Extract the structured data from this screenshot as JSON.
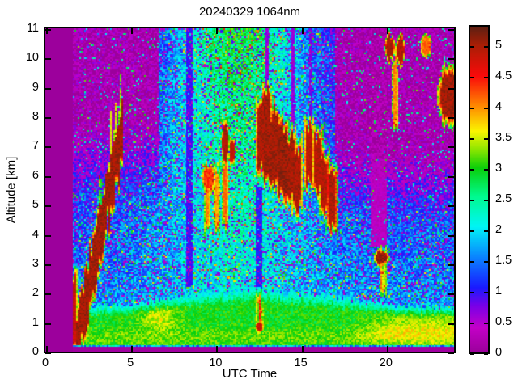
{
  "figure": {
    "title": "20240329 1064nm",
    "xlabel": "UTC Time",
    "ylabel": "Altitude [km]",
    "background_color": "#FFFFFF",
    "frame_color": "#000000"
  },
  "axes": {
    "x": {
      "min": 0,
      "max": 24,
      "ticks": [
        0,
        5,
        10,
        15,
        20
      ],
      "tick_labels": [
        "0",
        "5",
        "10",
        "15",
        "20"
      ]
    },
    "y": {
      "min": 0,
      "max": 11,
      "ticks": [
        0,
        1,
        2,
        3,
        4,
        5,
        6,
        7,
        8,
        9,
        10,
        11
      ],
      "tick_labels": [
        "0",
        "1",
        "2",
        "3",
        "4",
        "5",
        "6",
        "7",
        "8",
        "9",
        "10",
        "11"
      ]
    }
  },
  "colorbar": {
    "min": 0,
    "max": 5.3,
    "ticks": [
      0,
      0.5,
      1,
      1.5,
      2,
      2.5,
      3,
      3.5,
      4,
      4.5,
      5
    ],
    "tick_labels": [
      "0",
      "0.5",
      "1",
      "1.5",
      "2",
      "2.5",
      "3",
      "3.5",
      "4",
      "4.5",
      "5"
    ]
  },
  "colormap": [
    [
      0.0,
      "#9C009C"
    ],
    [
      0.4,
      "#C400C8"
    ],
    [
      0.75,
      "#7A00E8"
    ],
    [
      1.05,
      "#1A1AFF"
    ],
    [
      1.55,
      "#0A85FF"
    ],
    [
      2.05,
      "#00F5F5"
    ],
    [
      2.55,
      "#00FA8C"
    ],
    [
      3.0,
      "#0ACF0A"
    ],
    [
      3.3,
      "#8CE600"
    ],
    [
      3.6,
      "#FAF500"
    ],
    [
      4.0,
      "#FF8C00"
    ],
    [
      4.5,
      "#FA0A0A"
    ],
    [
      5.0,
      "#AA1E05"
    ],
    [
      5.3,
      "#5F1F12"
    ]
  ],
  "chart_data": {
    "type": "heatmap",
    "title": "20240329 1064nm",
    "xlabel": "UTC Time",
    "ylabel": "Altitude [km]",
    "x_range_hours": [
      0,
      24
    ],
    "y_range_km": [
      0,
      11
    ],
    "value_range": [
      0,
      5.3
    ],
    "grid": false,
    "legend": "colorbar right, 0 to 5.3 in 0.5 steps",
    "description": "Lidar 1064 nm attenuated-backscatter time-height quicklook for 2024-03-29. No data before ~01:40 UTC (flat magenta). Speckled blue/purple clear air, green boundary layer below ~1.5-2 km, cyan/green elevated plume 07-17 UTC reaching 11 km, saturated dark-red cloud layers, and magenta attenuation gaps above thick clouds.",
    "background": {
      "data_start_hour": 1.65,
      "blind_zone_top_km": 0.15,
      "surface_line_km": 0.22,
      "bl_value": 2.95,
      "bl_top_profile": [
        [
          1.7,
          1.5
        ],
        [
          5,
          1.6
        ],
        [
          8,
          1.9
        ],
        [
          12,
          2.15
        ],
        [
          14,
          2.05
        ],
        [
          17,
          1.85
        ],
        [
          20,
          1.6
        ],
        [
          24,
          1.5
        ]
      ],
      "free_air_base": 1.55,
      "free_air_lapse": 0.11,
      "plume_center_hour": 11.3,
      "plume_sigma_hours": 4.3,
      "plume_gain": 0.5,
      "plume_alt_gain": 0.2,
      "right_fade_start_hour": 17,
      "right_fade_alt_km": 4.6,
      "left_fade_end_hour": 6.6,
      "left_fade_alt_km": 5.2,
      "yellow_patch": {
        "t": 6.7,
        "z": 1.15,
        "amp": 0.55
      },
      "evening_low_yellow": {
        "from_hour": 17.5,
        "z": 0.75,
        "amp": 0.5
      }
    },
    "attenuation_bands": [
      {
        "t0": 8.3,
        "t1": 8.6,
        "z0": 2.2,
        "z1": 11,
        "value": 0.8
      },
      {
        "t0": 12.35,
        "t1": 12.75,
        "z0": 2.2,
        "z1": 5.6,
        "value": 0.9
      },
      {
        "t0": 12.9,
        "t1": 13.12,
        "z0": 8.8,
        "z1": 11,
        "value": 0.5
      },
      {
        "t0": 14.38,
        "t1": 14.58,
        "z0": 7.7,
        "z1": 11,
        "value": 0.5
      },
      {
        "t0": 15.5,
        "t1": 15.64,
        "z0": 7.6,
        "z1": 11,
        "value": 0.6
      },
      {
        "t0": 19.1,
        "t1": 20.05,
        "z0": 3.55,
        "z1": 11,
        "value": 0.2
      }
    ],
    "features": [
      {
        "kind": "vstreak",
        "name": "cloud-onset-column",
        "t": 1.68,
        "w": 0.1,
        "z0": 0.3,
        "z1": 2.3,
        "value": 5.0
      },
      {
        "kind": "streak",
        "name": "ascending-cloud-band",
        "t0": 1.9,
        "z0": 0.7,
        "t1": 4.35,
        "z1": 7.35,
        "half_width_h": 0.3,
        "depth_km": 1.25,
        "value": 5.2,
        "spikes_above": true
      },
      {
        "kind": "blob",
        "name": "midday-cloud",
        "tc": 9.55,
        "zc": 5.9,
        "rt": 0.38,
        "rz": 0.55,
        "value": 4.5
      },
      {
        "kind": "vstreak",
        "name": "virga",
        "t": 9.5,
        "w": 0.07,
        "z0": 4.3,
        "z1": 6.1,
        "value": 4.2
      },
      {
        "kind": "vstreak",
        "name": "virga",
        "t": 10.05,
        "w": 0.06,
        "z0": 4.4,
        "z1": 6.0,
        "value": 4.1
      },
      {
        "kind": "vstreak",
        "name": "virga",
        "t": 10.55,
        "w": 0.07,
        "z0": 4.4,
        "z1": 6.3,
        "value": 4.3
      },
      {
        "kind": "blob",
        "name": "cloud",
        "tc": 10.55,
        "zc": 7.1,
        "rt": 0.24,
        "rz": 0.7,
        "value": 5.15
      },
      {
        "kind": "blob",
        "name": "cloud",
        "tc": 10.95,
        "zc": 6.8,
        "rt": 0.2,
        "rz": 0.55,
        "value": 5.0
      },
      {
        "kind": "vstreak",
        "name": "cloud",
        "t": 12.6,
        "w": 0.18,
        "z0": 6.4,
        "z1": 8.3,
        "value": 5.15
      },
      {
        "kind": "vstreak",
        "name": "cloud",
        "t": 13.0,
        "w": 0.2,
        "z0": 6.0,
        "z1": 8.7,
        "value": 5.2
      },
      {
        "kind": "vstreak",
        "name": "cloud",
        "t": 13.45,
        "w": 0.22,
        "z0": 5.8,
        "z1": 8.1,
        "value": 5.2
      },
      {
        "kind": "vstreak",
        "name": "cloud",
        "t": 13.9,
        "w": 0.26,
        "z0": 5.5,
        "z1": 7.6,
        "value": 5.25
      },
      {
        "kind": "vstreak",
        "name": "cloud",
        "t": 14.35,
        "w": 0.26,
        "z0": 5.25,
        "z1": 7.3,
        "value": 5.2
      },
      {
        "kind": "vstreak",
        "name": "cloud",
        "t": 14.75,
        "w": 0.22,
        "z0": 5.0,
        "z1": 6.9,
        "value": 5.15
      },
      {
        "kind": "vstreak",
        "name": "cloud",
        "t": 15.45,
        "w": 0.18,
        "z0": 5.9,
        "z1": 7.5,
        "value": 5.05
      },
      {
        "kind": "vstreak",
        "name": "cloud",
        "t": 15.95,
        "w": 0.2,
        "z0": 5.5,
        "z1": 7.2,
        "value": 5.1
      },
      {
        "kind": "vstreak",
        "name": "cloud",
        "t": 16.35,
        "w": 0.2,
        "z0": 4.9,
        "z1": 6.7,
        "value": 5.1
      },
      {
        "kind": "vstreak",
        "name": "descending-cloud",
        "t": 16.8,
        "w": 0.22,
        "z0": 4.3,
        "z1": 6.1,
        "value": 5.15
      },
      {
        "kind": "blob",
        "name": "low-cloud",
        "tc": 19.7,
        "zc": 3.2,
        "rt": 0.48,
        "rz": 0.3,
        "value": 5.25
      },
      {
        "kind": "vstreak",
        "name": "virga",
        "t": 19.8,
        "w": 0.08,
        "z0": 2.35,
        "z1": 3.0,
        "value": 3.6
      },
      {
        "kind": "blob",
        "name": "high-cloud",
        "tc": 20.2,
        "zc": 10.35,
        "rt": 0.33,
        "rz": 0.5,
        "value": 5.15
      },
      {
        "kind": "blob",
        "name": "high-cloud",
        "tc": 20.8,
        "zc": 10.25,
        "rt": 0.3,
        "rz": 0.55,
        "value": 5.1
      },
      {
        "kind": "vstreak",
        "name": "fall-streak",
        "t": 20.5,
        "w": 0.07,
        "z0": 8.0,
        "z1": 9.8,
        "value": 4.2
      },
      {
        "kind": "blob",
        "name": "small-high-cloud",
        "tc": 22.3,
        "zc": 10.4,
        "rt": 0.3,
        "rz": 0.5,
        "value": 4.3
      },
      {
        "kind": "blob",
        "name": "edge-cloud",
        "tc": 23.65,
        "zc": 8.7,
        "rt": 0.72,
        "rz": 1.05,
        "value": 5.2
      },
      {
        "kind": "blob",
        "name": "shallow-plume",
        "tc": 12.55,
        "zc": 0.85,
        "rt": 0.26,
        "rz": 0.22,
        "value": 5.0
      },
      {
        "kind": "vstreak",
        "name": "plume-spike",
        "t": 12.5,
        "w": 0.05,
        "z0": 1.0,
        "z1": 1.6,
        "value": 3.3
      },
      {
        "kind": "vstreak",
        "name": "plume-spike",
        "t": 12.63,
        "w": 0.05,
        "z0": 1.0,
        "z1": 1.45,
        "value": 3.4
      }
    ]
  }
}
